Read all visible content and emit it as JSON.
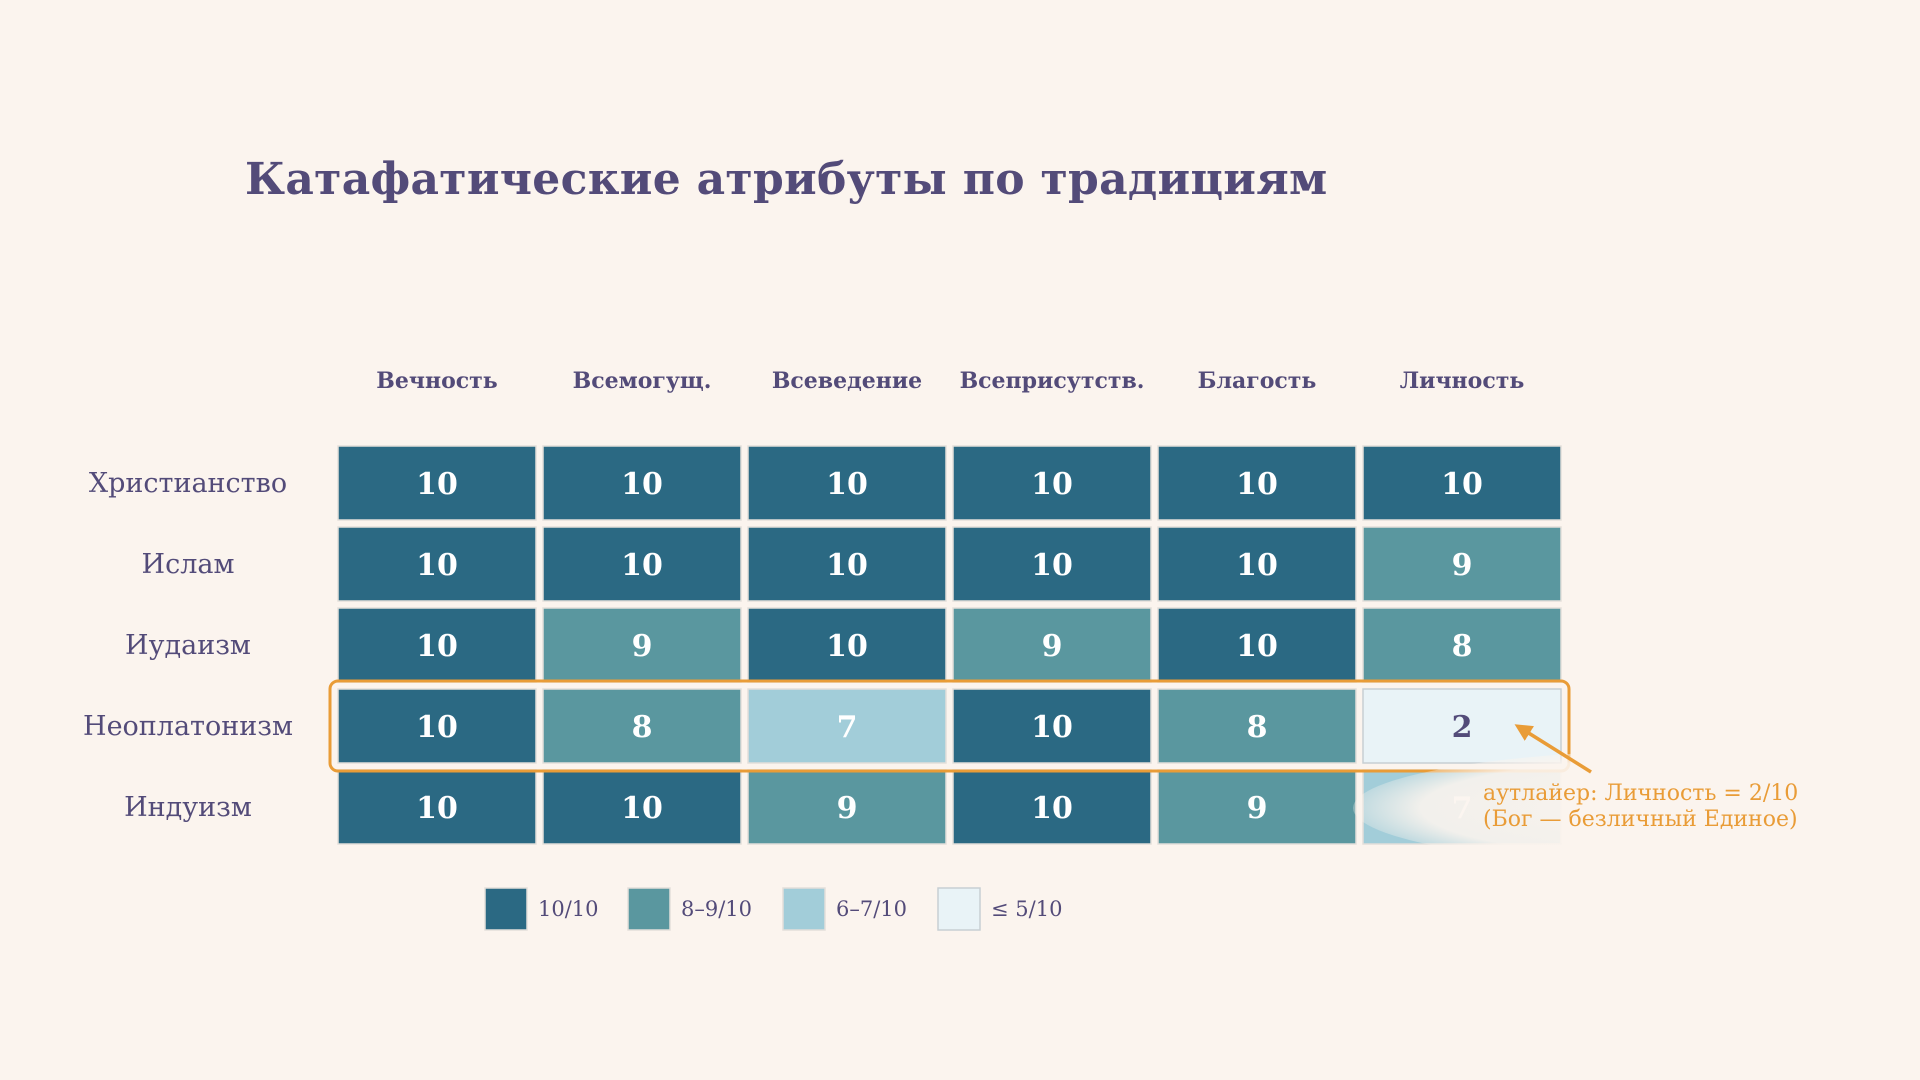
{
  "chart_data": {
    "type": "heatmap",
    "title": "Катафатические атрибуты по традициям",
    "columns": [
      "Вечность",
      "Всемогущ.",
      "Всеведение",
      "Всеприсутств.",
      "Благость",
      "Личность"
    ],
    "rows": [
      "Христианство",
      "Ислам",
      "Иудаизм",
      "Неоплатонизм",
      "Индуизм"
    ],
    "values": [
      [
        10,
        10,
        10,
        10,
        10,
        10
      ],
      [
        10,
        10,
        10,
        10,
        10,
        9
      ],
      [
        10,
        9,
        10,
        9,
        10,
        8
      ],
      [
        10,
        8,
        7,
        10,
        8,
        2
      ],
      [
        10,
        10,
        9,
        10,
        9,
        7
      ]
    ],
    "highlight_row": "Неоплатонизм",
    "highlight_cell": {
      "row": "Неоплатонизм",
      "column": "Личность"
    },
    "annotation": {
      "line1": "аутлайер: Личность = 2/10",
      "line2": "(Бог — безличный Единое)"
    },
    "legend": [
      {
        "label": "10/10",
        "color": "#2b6983"
      },
      {
        "label": "8–9/10",
        "color": "#5a979f"
      },
      {
        "label": "6–7/10",
        "color": "#a2cdd9"
      },
      {
        "label": "≤ 5/10",
        "color": "#e9f3f7"
      }
    ],
    "legend_placement": "bottom",
    "grid": false
  },
  "colors": {
    "background": "#fbf4ee",
    "text": "#534b79",
    "accent": "#e99c37",
    "cell_border": "#e3dfda",
    "light_cell_border": "#c8cfd3",
    "light_text": "#ffffff"
  }
}
